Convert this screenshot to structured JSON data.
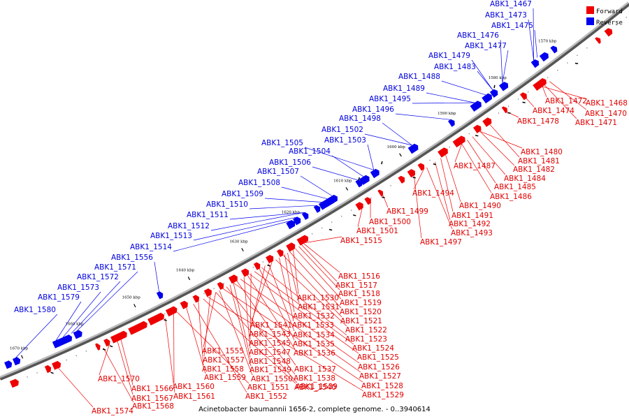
{
  "caption": "Acinetobacter baumannii 1656-2, complete genome. - 0..3940614",
  "legend": [
    {
      "label": "Forward",
      "color": "#ee0000"
    },
    {
      "label": "Reverse",
      "color": "#0000ee"
    }
  ],
  "colors": {
    "forward": "#ee0000",
    "reverse": "#0000ee",
    "backbone_dark": "#555555",
    "backbone_light": "#bbbbbb"
  },
  "scale_ticks": [
    "1570 kbp",
    "1580 kbp",
    "1590 kbp",
    "1600 kbp",
    "1610 kbp",
    "1620 kbp",
    "1630 kbp",
    "1640 kbp",
    "1650 kbp",
    "1660 kbp",
    "1670 kbp"
  ],
  "reverse_genes": [
    "ABK1_1467",
    "ABK1_1473",
    "ABK1_1475",
    "ABK1_1476",
    "ABK1_1477",
    "ABK1_1479",
    "ABK1_1483",
    "ABK1_1488",
    "ABK1_1489",
    "ABK1_1495",
    "ABK1_1496",
    "ABK1_1498",
    "ABK1_1502",
    "ABK1_1503",
    "ABK1_1505",
    "ABK1_1504",
    "ABK1_1506",
    "ABK1_1507",
    "ABK1_1508",
    "ABK1_1509",
    "ABK1_1510",
    "ABK1_1511",
    "ABK1_1512",
    "ABK1_1513",
    "ABK1_1514",
    "ABK1_1556",
    "ABK1_1571",
    "ABK1_1572",
    "ABK1_1573",
    "ABK1_1579",
    "ABK1_1580"
  ],
  "forward_genes": [
    "ABK1_1472",
    "ABK1_1468",
    "ABK1_1474",
    "ABK1_1470",
    "ABK1_1478",
    "ABK1_1471",
    "ABK1_1480",
    "ABK1_1481",
    "ABK1_1487",
    "ABK1_1482",
    "ABK1_1484",
    "ABK1_1485",
    "ABK1_1486",
    "ABK1_1494",
    "ABK1_1490",
    "ABK1_1499",
    "ABK1_1491",
    "ABK1_1500",
    "ABK1_1492",
    "ABK1_1501",
    "ABK1_1493",
    "ABK1_1497",
    "ABK1_1515",
    "ABK1_1516",
    "ABK1_1517",
    "ABK1_1518",
    "ABK1_1530",
    "ABK1_1519",
    "ABK1_1531",
    "ABK1_1520",
    "ABK1_1532",
    "ABK1_1521",
    "ABK1_1541",
    "ABK1_1533",
    "ABK1_1522",
    "ABK1_1543",
    "ABK1_1534",
    "ABK1_1523",
    "ABK1_1545",
    "ABK1_1535",
    "ABK1_1524",
    "ABK1_1555",
    "ABK1_1547",
    "ABK1_1536",
    "ABK1_1525",
    "ABK1_1557",
    "ABK1_1548",
    "ABK1_1537",
    "ABK1_1526",
    "ABK1_1558",
    "ABK1_1549",
    "ABK1_1538",
    "ABK1_1527",
    "ABK1_1559",
    "ABK1_1550",
    "ABK1_1539",
    "ABK1_1528",
    "ABK1_1570",
    "ABK1_1560",
    "ABK1_1551",
    "ABK1_1540",
    "ABK1_1529",
    "ABK1_1566",
    "ABK1_1561",
    "ABK1_1552",
    "ABK1_1567",
    "ABK1_1568",
    "ABK1_1574"
  ]
}
